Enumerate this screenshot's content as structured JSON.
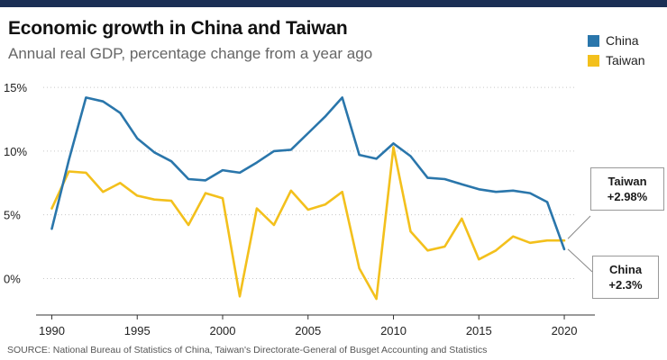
{
  "title": "Economic growth in China and Taiwan",
  "subtitle": "Annual real GDP, percentage change from a year ago",
  "source": "SOURCE: National Bureau of Statistics of China, Taiwan's Directorate-General of Busget Accounting and Statistics",
  "colors": {
    "china": "#2a76ab",
    "taiwan": "#f3c01c",
    "top_bar": "#1b2f55"
  },
  "callouts": {
    "taiwan": {
      "name": "Taiwan",
      "value": "+2.98%"
    },
    "china": {
      "name": "China",
      "value": "+2.3%"
    }
  },
  "chart_data": {
    "type": "line",
    "title": "Economic growth in China and Taiwan",
    "subtitle": "Annual real GDP, percentage change from a year ago",
    "xlabel": "",
    "ylabel": "",
    "x": [
      1990,
      1991,
      1992,
      1993,
      1994,
      1995,
      1996,
      1997,
      1998,
      1999,
      2000,
      2001,
      2002,
      2003,
      2004,
      2005,
      2006,
      2007,
      2008,
      2009,
      2010,
      2011,
      2012,
      2013,
      2014,
      2015,
      2016,
      2017,
      2018,
      2019,
      2020
    ],
    "series": [
      {
        "name": "China",
        "color": "#2a76ab",
        "values": [
          3.9,
          9.3,
          14.2,
          13.9,
          13.0,
          11.0,
          9.9,
          9.2,
          7.8,
          7.7,
          8.5,
          8.3,
          9.1,
          10.0,
          10.1,
          11.4,
          12.7,
          14.2,
          9.7,
          9.4,
          10.6,
          9.6,
          7.9,
          7.8,
          7.4,
          7.0,
          6.8,
          6.9,
          6.7,
          6.0,
          2.3
        ]
      },
      {
        "name": "Taiwan",
        "color": "#f3c01c",
        "values": [
          5.5,
          8.4,
          8.3,
          6.8,
          7.5,
          6.5,
          6.2,
          6.1,
          4.2,
          6.7,
          6.3,
          -1.4,
          5.5,
          4.2,
          6.9,
          5.4,
          5.8,
          6.8,
          0.8,
          -1.6,
          10.3,
          3.7,
          2.2,
          2.5,
          4.7,
          1.5,
          2.2,
          3.3,
          2.8,
          2.98,
          2.98
        ]
      }
    ],
    "legend": {
      "placement": "top-right",
      "entries": [
        "China",
        "Taiwan"
      ]
    },
    "y_ticks": [
      {
        "value": 15,
        "label": "15%"
      },
      {
        "value": 10,
        "label": "10%"
      },
      {
        "value": 5,
        "label": "5%"
      },
      {
        "value": 0,
        "label": "0%"
      }
    ],
    "x_ticks": [
      {
        "value": 1990,
        "label": "1990"
      },
      {
        "value": 1995,
        "label": "1995"
      },
      {
        "value": 2000,
        "label": "2000"
      },
      {
        "value": 2005,
        "label": "2005"
      },
      {
        "value": 2010,
        "label": "2010"
      },
      {
        "value": 2015,
        "label": "2015"
      },
      {
        "value": 2020,
        "label": "2020"
      }
    ],
    "xlim": [
      1989.5,
      2021
    ],
    "ylim": [
      -2.3,
      15.5
    ],
    "grid": "horizontal-dotted"
  }
}
